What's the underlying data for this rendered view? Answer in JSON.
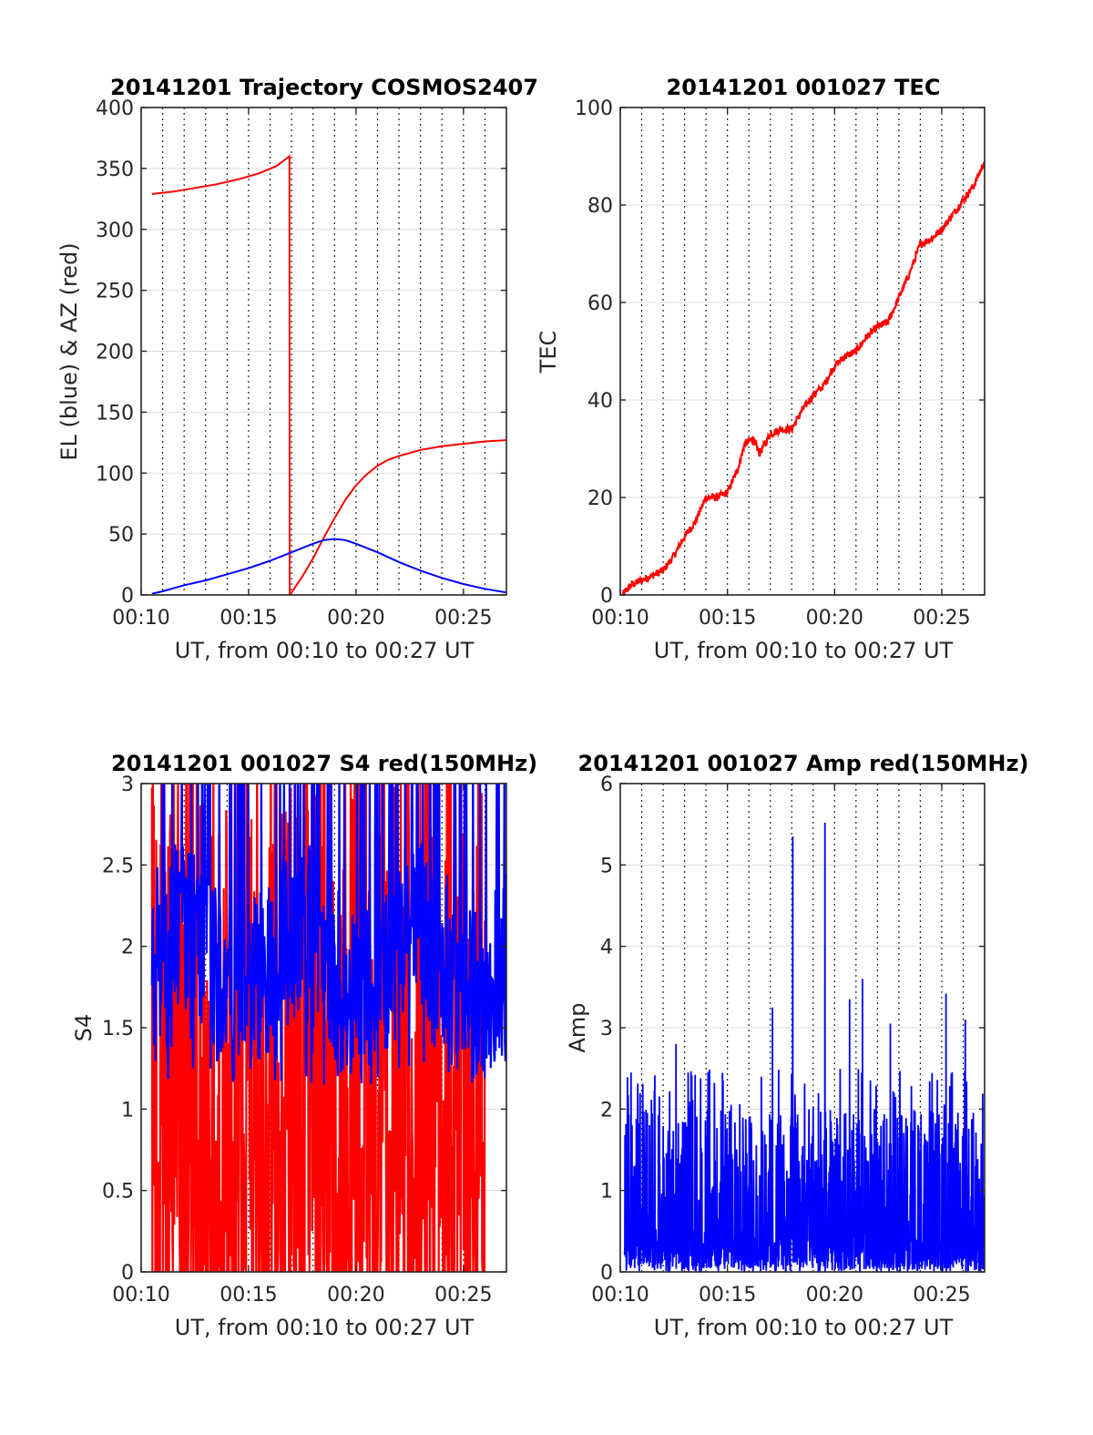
{
  "chart_data": [
    {
      "type": "line",
      "title": "20141201 Trajectory COSMOS2407",
      "xlabel": "UT, from 00:10 to 00:27 UT",
      "ylabel": "EL (blue) & AZ (red)",
      "xlim": [
        10.0,
        27.0
      ],
      "ylim": [
        0,
        400
      ],
      "xticks": [
        10,
        15,
        20,
        25
      ],
      "xtick_labels": [
        "00:10",
        "00:15",
        "00:20",
        "00:25"
      ],
      "yticks": [
        0,
        50,
        100,
        150,
        200,
        250,
        300,
        350,
        400
      ],
      "ytick_labels": [
        "0",
        "50",
        "100",
        "150",
        "200",
        "250",
        "300",
        "350",
        "400"
      ],
      "xgrid_minutes_dotted": true,
      "series": [
        {
          "color": "#ff0000",
          "x": [
            10.5,
            11.5,
            12.5,
            13.5,
            14.5,
            15.5,
            16.3,
            16.9,
            16.91,
            17.0,
            17.5,
            18.0,
            18.5,
            19.0,
            19.5,
            20.0,
            20.5,
            21.0,
            21.5,
            22.0,
            23.0,
            24.0,
            25.0,
            26.0,
            27.0
          ],
          "y": [
            329,
            331,
            334,
            337,
            341,
            346,
            352,
            360,
            0,
            2,
            15,
            30,
            47,
            63,
            78,
            90,
            99,
            106,
            111,
            114,
            119,
            122,
            124,
            126,
            127
          ]
        },
        {
          "color": "#0000ff",
          "x": [
            10.5,
            11.0,
            12.0,
            13.0,
            14.0,
            15.0,
            16.0,
            17.0,
            18.0,
            18.5,
            19.0,
            19.5,
            20.0,
            21.0,
            22.0,
            23.0,
            24.0,
            25.0,
            26.0,
            27.0
          ],
          "y": [
            1,
            3,
            8,
            12,
            17,
            22,
            28,
            35,
            42,
            45,
            46,
            45,
            42,
            35,
            27,
            20,
            14,
            9,
            5,
            2
          ]
        }
      ]
    },
    {
      "type": "line",
      "title": "20141201 001027 TEC",
      "xlabel": "UT, from 00:10 to 00:27 UT",
      "ylabel": "TEC",
      "xlim": [
        10.0,
        27.0
      ],
      "ylim": [
        0,
        100
      ],
      "xticks": [
        10,
        15,
        20,
        25
      ],
      "xtick_labels": [
        "00:10",
        "00:15",
        "00:20",
        "00:25"
      ],
      "yticks": [
        0,
        20,
        40,
        60,
        80,
        100
      ],
      "ytick_labels": [
        "0",
        "20",
        "40",
        "60",
        "80",
        "100"
      ],
      "series": [
        {
          "color": "#ff0000",
          "noisy": true,
          "x": [
            10.1,
            10.5,
            11.0,
            11.5,
            12.0,
            12.5,
            13.0,
            13.5,
            14.0,
            14.5,
            15.0,
            15.5,
            15.8,
            16.2,
            16.5,
            17.0,
            17.5,
            18.0,
            18.5,
            19.0,
            19.5,
            20.0,
            20.5,
            21.0,
            21.5,
            22.0,
            22.5,
            23.0,
            23.5,
            24.0,
            24.5,
            25.0,
            25.5,
            26.0,
            26.5,
            27.0
          ],
          "y": [
            0,
            2,
            3,
            4,
            5,
            8,
            12,
            15,
            20,
            20,
            21,
            26,
            31,
            32,
            29,
            33,
            34,
            34,
            38,
            41,
            43,
            47,
            49,
            50,
            53,
            55,
            56,
            61,
            66,
            72,
            73,
            75,
            78,
            81,
            84,
            89
          ]
        }
      ]
    },
    {
      "type": "line",
      "title": "20141201 001027 S4 red(150MHz)",
      "xlabel": "UT, from 00:10 to 00:27 UT",
      "ylabel": "S4",
      "xlim": [
        10.0,
        27.0
      ],
      "ylim": [
        0,
        3
      ],
      "xticks": [
        10,
        15,
        20,
        25
      ],
      "xtick_labels": [
        "00:10",
        "00:15",
        "00:20",
        "00:25"
      ],
      "yticks": [
        0,
        0.5,
        1,
        1.5,
        2,
        2.5,
        3
      ],
      "ytick_labels": [
        "0",
        "0.5",
        "1",
        "1.5",
        "2",
        "2.5",
        "3"
      ],
      "series": [
        {
          "color": "#ff0000",
          "x_range": [
            10.5,
            26.0
          ],
          "style": "noise-full-range",
          "y_range": [
            0,
            3
          ]
        },
        {
          "color": "#0000ff",
          "x_range": [
            10.5,
            27.0
          ],
          "style": "noise-band",
          "y_range": [
            1.2,
            3
          ]
        }
      ]
    },
    {
      "type": "line",
      "title": "20141201 001027 Amp red(150MHz)",
      "xlabel": "UT, from 00:10 to 00:27 UT",
      "ylabel": "Amp",
      "xlim": [
        10.0,
        27.0
      ],
      "ylim": [
        0,
        6
      ],
      "xticks": [
        10,
        15,
        20,
        25
      ],
      "xtick_labels": [
        "00:10",
        "00:15",
        "00:20",
        "00:25"
      ],
      "yticks": [
        0,
        1,
        2,
        3,
        4,
        5,
        6
      ],
      "ytick_labels": [
        "0",
        "1",
        "2",
        "3",
        "4",
        "5",
        "6"
      ],
      "series": [
        {
          "color": "#0000ff",
          "x_range": [
            10.2,
            27.0
          ],
          "style": "dense-noise",
          "typical_max": 2.0,
          "peaks": [
            [
              18.05,
              5.35
            ],
            [
              19.55,
              5.52
            ],
            [
              21.3,
              3.6
            ],
            [
              17.1,
              3.25
            ],
            [
              20.7,
              3.35
            ],
            [
              25.2,
              3.42
            ],
            [
              26.1,
              3.1
            ],
            [
              12.6,
              2.8
            ],
            [
              22.6,
              3.05
            ]
          ]
        }
      ]
    }
  ]
}
